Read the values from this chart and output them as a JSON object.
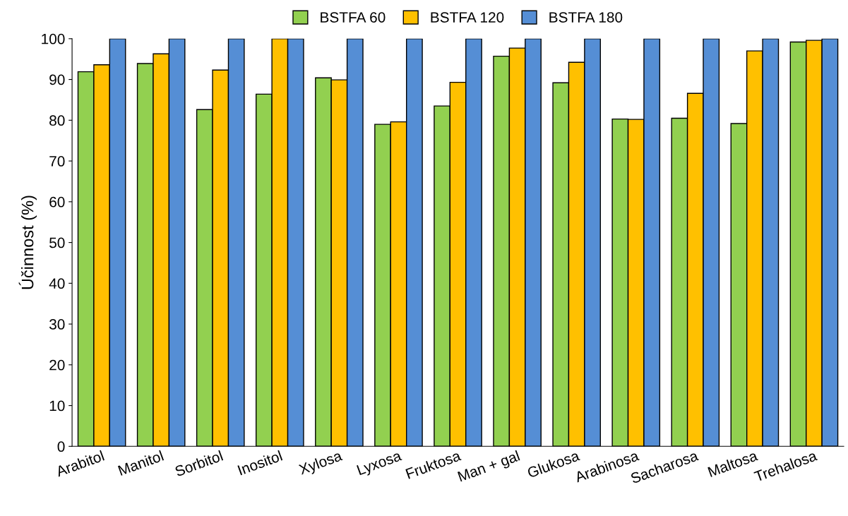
{
  "chart_data": {
    "type": "bar",
    "ylabel": "Účinnost (%)",
    "categories": [
      "Arabitol",
      "Manitol",
      "Sorbitol",
      "Inositol",
      "Xylosa",
      "Lyxosa",
      "Fruktosa",
      "Man + gal",
      "Glukosa",
      "Arabinosa",
      "Sacharosa",
      "Maltosa",
      "Trehalosa"
    ],
    "series": [
      {
        "name": "BSTFA 60",
        "color": "#92d050",
        "values": [
          91.9,
          93.9,
          82.6,
          86.4,
          90.4,
          79.0,
          83.5,
          95.7,
          89.2,
          80.3,
          80.5,
          79.2,
          99.2
        ]
      },
      {
        "name": "BSTFA 120",
        "color": "#ffc000",
        "values": [
          93.6,
          96.3,
          92.3,
          100,
          89.9,
          79.6,
          89.3,
          97.7,
          94.2,
          80.2,
          86.6,
          97.0,
          99.6
        ]
      },
      {
        "name": "BSTFA 180",
        "color": "#558ed5",
        "values": [
          100,
          100,
          100,
          100,
          100,
          100,
          100,
          100,
          100,
          100,
          100,
          100,
          100
        ]
      }
    ],
    "ylim": [
      0,
      100
    ],
    "yticks": [
      0,
      10,
      20,
      30,
      40,
      50,
      60,
      70,
      80,
      90,
      100
    ],
    "grid": false,
    "legend": "top"
  }
}
